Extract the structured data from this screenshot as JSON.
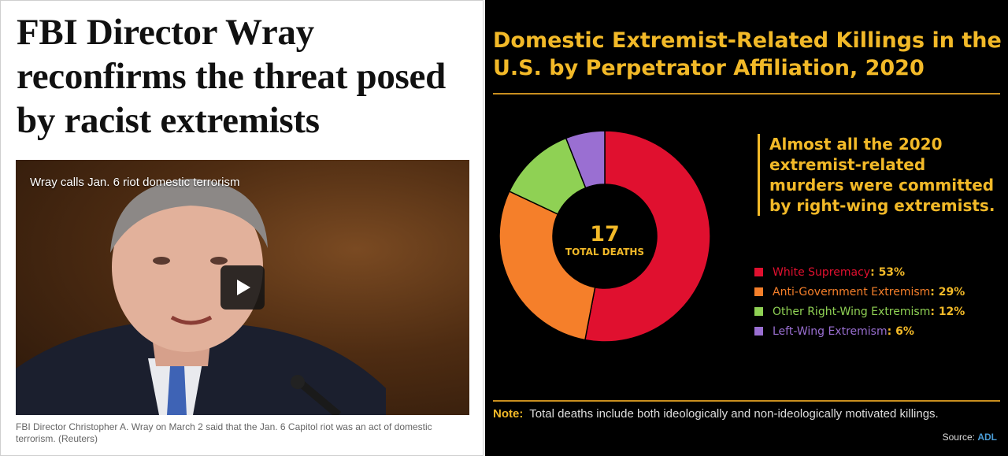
{
  "article": {
    "headline": "FBI Director Wray reconfirms the threat posed by racist extremists",
    "video_title": "Wray calls Jan. 6 riot domestic terrorism",
    "play_icon": "play-icon",
    "caption": "FBI Director Christopher A. Wray on March 2 said that the Jan. 6 Capitol riot was an act of domestic terrorism. (Reuters)"
  },
  "infographic": {
    "callout": "Almost all the 2020 extremist-related murders were committed by right-wing extremists.",
    "note_label": "Note:",
    "note_text": "Total deaths include both ideologically and non-ideologically motivated killings.",
    "source_label": "Source:",
    "source_name": "ADL"
  },
  "chart_data": {
    "type": "pie",
    "title": "Domestic Extremist-Related Killings in the U.S. by Perpetrator Affiliation, 2020",
    "center_value": "17",
    "center_label": "TOTAL DEATHS",
    "series": [
      {
        "name": "White Supremacy",
        "value": 53,
        "label": "53%",
        "color": "#e0102f"
      },
      {
        "name": "Anti-Government Extremism",
        "value": 29,
        "label": "29%",
        "color": "#f57f2a"
      },
      {
        "name": "Other Right-Wing Extremism",
        "value": 12,
        "label": "12%",
        "color": "#8fd154"
      },
      {
        "name": "Left-Wing Extremism",
        "value": 6,
        "label": "6%",
        "color": "#9a6fd2"
      }
    ]
  }
}
